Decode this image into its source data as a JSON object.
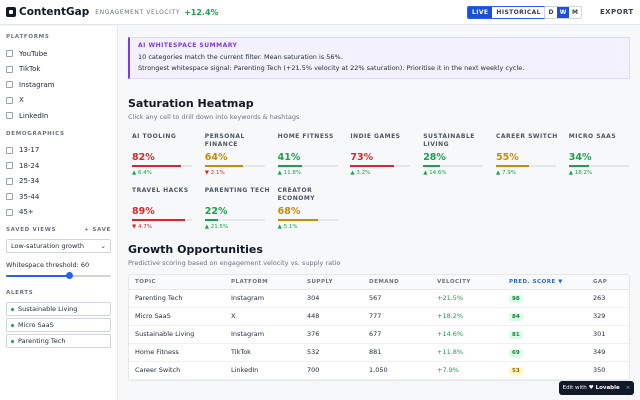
{
  "header": {
    "brand": "ContentGap",
    "metric_label": "ENGAGEMENT VELOCITY",
    "metric_value": "+12.4%",
    "modes": [
      "LIVE",
      "HISTORICAL"
    ],
    "active_mode": "LIVE",
    "periods": [
      "D",
      "W",
      "M"
    ],
    "active_period": "W",
    "export_label": "EXPORT"
  },
  "sidebar": {
    "platforms_title": "PLATFORMS",
    "platforms": [
      "YouTube",
      "TikTok",
      "Instagram",
      "X",
      "LinkedIn"
    ],
    "demographics_title": "DEMOGRAPHICS",
    "demographics": [
      "13-17",
      "18-24",
      "25-34",
      "35-44",
      "45+"
    ],
    "saved_views_title": "SAVED VIEWS",
    "save_label": "+ SAVE",
    "saved_view_selected": "Low-saturation growth",
    "threshold_label": "Whitespace threshold: 60",
    "threshold_value": 60,
    "alerts_title": "ALERTS",
    "alerts": [
      "Sustainable Living",
      "Micro SaaS",
      "Parenting Tech"
    ]
  },
  "summary": {
    "title": "AI WHITESPACE SUMMARY",
    "line1": "10 categories match the current filter. Mean saturation is 56%.",
    "line2": "Strongest whitespace signal: Parenting Tech (+21.5% velocity at 22% saturation). Prioritise it in the next weekly cycle."
  },
  "heatmap": {
    "title": "Saturation Heatmap",
    "subtitle": "Click any cell to drill down into keywords & hashtags",
    "cells": [
      {
        "name": "AI TOOLING",
        "value": "82%",
        "saturation": 82,
        "delta": "▲ 6.4%",
        "color": "#dc2626"
      },
      {
        "name": "PERSONAL FINANCE",
        "value": "64%",
        "saturation": 64,
        "delta": "▼ 2.1%",
        "color": "#ca8a04"
      },
      {
        "name": "HOME FITNESS",
        "value": "41%",
        "saturation": 41,
        "delta": "▲ 11.8%",
        "color": "#16a34a"
      },
      {
        "name": "INDIE GAMES",
        "value": "73%",
        "saturation": 73,
        "delta": "▲ 3.2%",
        "color": "#dc2626"
      },
      {
        "name": "SUSTAINABLE LIVING",
        "value": "28%",
        "saturation": 28,
        "delta": "▲ 14.6%",
        "color": "#16a34a"
      },
      {
        "name": "CAREER SWITCH",
        "value": "55%",
        "saturation": 55,
        "delta": "▲ 7.9%",
        "color": "#ca8a04"
      },
      {
        "name": "MICRO SAAS",
        "value": "34%",
        "saturation": 34,
        "delta": "▲ 18.2%",
        "color": "#16a34a"
      },
      {
        "name": "TRAVEL HACKS",
        "value": "89%",
        "saturation": 89,
        "delta": "▼ 4.7%",
        "color": "#dc2626"
      },
      {
        "name": "PARENTING TECH",
        "value": "22%",
        "saturation": 22,
        "delta": "▲ 21.5%",
        "color": "#16a34a"
      },
      {
        "name": "CREATOR ECONOMY",
        "value": "68%",
        "saturation": 68,
        "delta": "▲ 5.1%",
        "color": "#ca8a04"
      }
    ]
  },
  "opportunities": {
    "title": "Growth Opportunities",
    "subtitle": "Predictive scoring based on engagement velocity vs. supply ratio",
    "columns": [
      "TOPIC",
      "PLATFORM",
      "SUPPLY",
      "DEMAND",
      "VELOCITY",
      "PRED. SCORE ▼",
      "GAP"
    ],
    "rows": [
      {
        "topic": "Parenting Tech",
        "platform": "Instagram",
        "supply": "304",
        "demand": "567",
        "velocity": "+21.5%",
        "score": "98",
        "gap": "263"
      },
      {
        "topic": "Micro SaaS",
        "platform": "X",
        "supply": "448",
        "demand": "777",
        "velocity": "+18.2%",
        "score": "84",
        "gap": "329"
      },
      {
        "topic": "Sustainable Living",
        "platform": "Instagram",
        "supply": "376",
        "demand": "677",
        "velocity": "+14.6%",
        "score": "81",
        "gap": "301"
      },
      {
        "topic": "Home Fitness",
        "platform": "TikTok",
        "supply": "532",
        "demand": "881",
        "velocity": "+11.8%",
        "score": "69",
        "gap": "349"
      },
      {
        "topic": "Career Switch",
        "platform": "LinkedIn",
        "supply": "700",
        "demand": "1,050",
        "velocity": "+7.9%",
        "score": "53",
        "gap": "350"
      }
    ]
  },
  "badge": {
    "label": "Edit with",
    "brand": "♥ Lovable",
    "close": "×"
  }
}
